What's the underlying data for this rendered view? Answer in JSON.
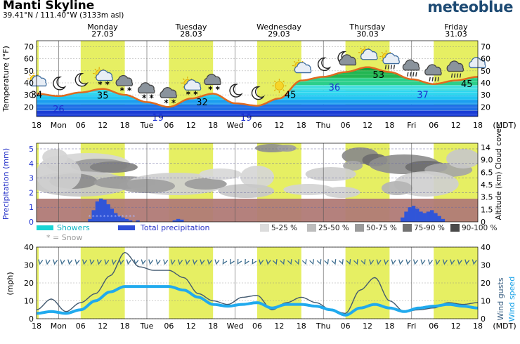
{
  "header": {
    "title": "Manti Skyline",
    "coords": "39.41°N / 111.40°W (3133m asl)",
    "brand": "meteoblue"
  },
  "days": [
    {
      "name": "Monday",
      "date": "27.03"
    },
    {
      "name": "Tuesday",
      "date": "28.03"
    },
    {
      "name": "Wednesday",
      "date": "29.03"
    },
    {
      "name": "Thursday",
      "date": "30.03"
    },
    {
      "name": "Friday",
      "date": "31.03"
    }
  ],
  "time_axis": {
    "labels": [
      "18",
      "Mon",
      "06",
      "12",
      "18",
      "Tue",
      "06",
      "12",
      "18",
      "Wed",
      "06",
      "12",
      "18",
      "Thu",
      "06",
      "12",
      "18",
      "Fri",
      "06",
      "12",
      "18"
    ],
    "timezone": "(MDT)"
  },
  "chart_data": [
    {
      "type": "area",
      "name": "temperature",
      "ylabel": "Temperature (°F)",
      "ylim": [
        12,
        75
      ],
      "yticks": [
        20,
        30,
        40,
        50,
        60,
        70
      ],
      "x_hours": [
        0,
        6,
        12,
        18,
        24,
        30,
        36,
        42,
        48,
        54,
        60,
        66,
        72,
        78,
        84,
        90,
        96,
        102,
        108,
        114,
        120
      ],
      "temp_max_curve": [
        31,
        29,
        32,
        35,
        30,
        24,
        20,
        27,
        31,
        23,
        21,
        27,
        42,
        45,
        49,
        53,
        49,
        43,
        39,
        42,
        45
      ],
      "temp_min_curve": [
        30,
        26,
        28,
        33,
        28,
        21,
        19,
        24,
        29,
        21,
        19,
        25,
        40,
        43,
        47,
        51,
        47,
        41,
        37,
        40,
        43
      ],
      "labels": [
        {
          "h": 0,
          "value": "34"
        },
        {
          "h": 6,
          "value": "26"
        },
        {
          "h": 18,
          "value": "35"
        },
        {
          "h": 33,
          "value": "19"
        },
        {
          "h": 45,
          "value": "32"
        },
        {
          "h": 57,
          "value": "19"
        },
        {
          "h": 69,
          "value": "45"
        },
        {
          "h": 81,
          "value": "36"
        },
        {
          "h": 93,
          "value": "53"
        },
        {
          "h": 105,
          "value": "37"
        },
        {
          "h": 117,
          "value": "45"
        }
      ],
      "weather_icons": [
        "sun-cloud",
        "moon",
        "moon",
        "sun-cloud-snow",
        "cloud-snow",
        "cloud-snow",
        "cloud-snow",
        "sun-cloud-snow",
        "cloud-snow",
        "moon",
        "moon",
        "sun",
        "sun-cloud",
        "moon",
        "moon-cloud",
        "sun-cloud",
        "sun-cloud-rain",
        "cloud-rain",
        "cloud-rain",
        "cloud-rain",
        "cloud"
      ]
    },
    {
      "type": "bar",
      "name": "precipitation",
      "ylabel": "Precipitation (mm)",
      "ylabel_right": "Altitude (km) Cloud cover",
      "ylim": [
        0,
        5
      ],
      "yticks": [
        0,
        1,
        2,
        3,
        4,
        5
      ],
      "right_ticks": [
        "14",
        "9.0",
        "6.5",
        "4.5",
        "3.5",
        "1.5",
        "0"
      ],
      "legend": {
        "showers": "Showers",
        "total": "Total precipitation",
        "snow": "* = Snow",
        "cover": [
          "5-25 %",
          "25-50 %",
          "50-75 %",
          "75-90 %",
          "90-100 %"
        ]
      },
      "total_precip": [
        {
          "h": 14,
          "mm": 0.2
        },
        {
          "h": 15,
          "mm": 0.8
        },
        {
          "h": 16,
          "mm": 1.4
        },
        {
          "h": 17,
          "mm": 1.6
        },
        {
          "h": 18,
          "mm": 1.5
        },
        {
          "h": 19,
          "mm": 1.2
        },
        {
          "h": 20,
          "mm": 0.9
        },
        {
          "h": 21,
          "mm": 0.6
        },
        {
          "h": 22,
          "mm": 0.4
        },
        {
          "h": 23,
          "mm": 0.3
        },
        {
          "h": 24,
          "mm": 0.2
        },
        {
          "h": 25,
          "mm": 0.1
        },
        {
          "h": 27,
          "mm": 0.1
        },
        {
          "h": 37,
          "mm": 0.1
        },
        {
          "h": 38,
          "mm": 0.2
        },
        {
          "h": 39,
          "mm": 0.15
        },
        {
          "h": 99,
          "mm": 0.3
        },
        {
          "h": 100,
          "mm": 0.7
        },
        {
          "h": 101,
          "mm": 1.0
        },
        {
          "h": 102,
          "mm": 1.1
        },
        {
          "h": 103,
          "mm": 0.9
        },
        {
          "h": 104,
          "mm": 0.7
        },
        {
          "h": 105,
          "mm": 0.6
        },
        {
          "h": 106,
          "mm": 0.7
        },
        {
          "h": 107,
          "mm": 0.8
        },
        {
          "h": 108,
          "mm": 0.6
        },
        {
          "h": 109,
          "mm": 0.4
        },
        {
          "h": 110,
          "mm": 0.2
        }
      ]
    },
    {
      "type": "line",
      "name": "wind",
      "ylabel": "(mph)",
      "ylabel_right": "Wind gusts Wind speed",
      "ylim": [
        0,
        40
      ],
      "yticks": [
        0,
        10,
        20,
        30,
        40
      ],
      "x_hours": [
        0,
        4,
        8,
        12,
        16,
        20,
        24,
        28,
        32,
        36,
        40,
        44,
        48,
        52,
        56,
        60,
        64,
        68,
        72,
        76,
        80,
        84,
        88,
        92,
        96,
        100,
        104,
        108,
        112,
        116,
        120
      ],
      "gusts": [
        5,
        11,
        4,
        9,
        14,
        24,
        37,
        29,
        27,
        27,
        23,
        14,
        10,
        8,
        12,
        13,
        5,
        9,
        12,
        9,
        5,
        3,
        16,
        23,
        10,
        4,
        5,
        6,
        9,
        8,
        9
      ],
      "speed": [
        3,
        4,
        3,
        5,
        10,
        15,
        18,
        18,
        18,
        18,
        16,
        12,
        8,
        7,
        8,
        9,
        6,
        8,
        8,
        7,
        5,
        2,
        6,
        8,
        6,
        4,
        6,
        7,
        8,
        7,
        6
      ]
    }
  ],
  "colors": {
    "day_band": "#e6ef63",
    "temp_line": "#e06a1f",
    "precip_bar": "#3055d8",
    "brown_band": "#b07a76",
    "gust_line": "#435a70",
    "speed_line": "#20aaee",
    "brand": "#1d4a73"
  }
}
